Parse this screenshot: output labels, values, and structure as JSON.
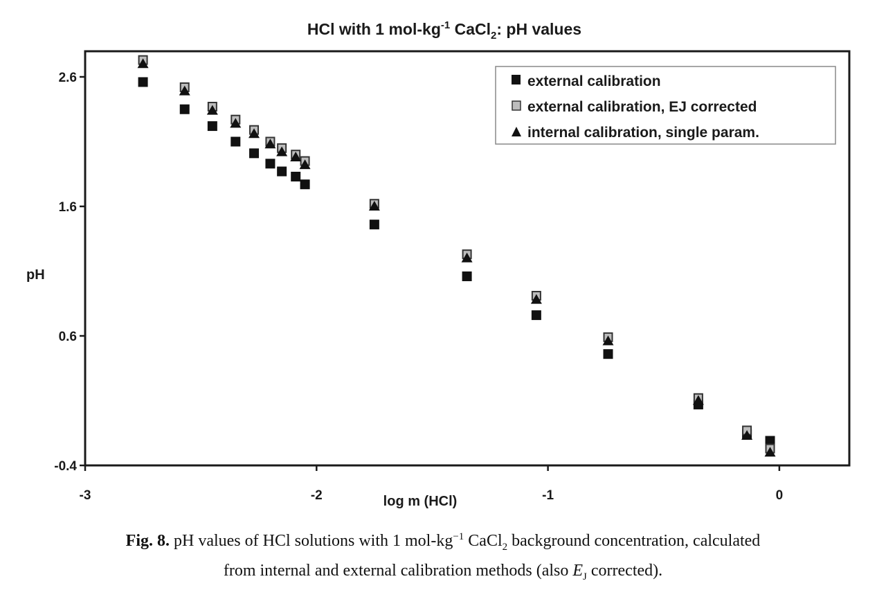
{
  "chart_data": {
    "type": "scatter",
    "title": {
      "main": "HCl with 1 mol-kg",
      "sup": "-1",
      "mid": " CaCl",
      "sub": "2",
      "end": ":  pH values"
    },
    "xlabel": "log m (HCl)",
    "ylabel": "pH",
    "xlim": [
      -3,
      0.3
    ],
    "ylim": [
      -0.4,
      2.8
    ],
    "xticks": [
      -3,
      -2,
      -1,
      0
    ],
    "xtick_labels": [
      "-3",
      "-2",
      "-1",
      "0"
    ],
    "yticks": [
      -0.4,
      0.6,
      1.6,
      2.6
    ],
    "ytick_labels": [
      "-0.4",
      "0.6",
      "1.6",
      "2.6"
    ],
    "grid": false,
    "legend_position": "top-right",
    "x": [
      -2.75,
      -2.57,
      -2.45,
      -2.35,
      -2.27,
      -2.2,
      -2.15,
      -2.09,
      -2.05,
      -1.75,
      -1.35,
      -1.05,
      -0.74,
      -0.35,
      -0.14,
      -0.04
    ],
    "series": [
      {
        "name": "external calibration",
        "marker": "square-filled",
        "color": "#111111",
        "values": [
          2.56,
          2.35,
          2.22,
          2.1,
          2.01,
          1.93,
          1.87,
          1.83,
          1.77,
          1.46,
          1.06,
          0.76,
          0.46,
          0.07,
          -0.16,
          -0.21
        ]
      },
      {
        "name": "external calibration, EJ corrected",
        "marker": "square-gray",
        "color": "#b8b8b8",
        "values": [
          2.73,
          2.52,
          2.37,
          2.27,
          2.19,
          2.1,
          2.05,
          2.0,
          1.95,
          1.62,
          1.23,
          0.91,
          0.59,
          0.12,
          -0.13,
          -0.27
        ]
      },
      {
        "name": "internal calibration, single param.",
        "marker": "triangle-filled",
        "color": "#111111",
        "values": [
          2.7,
          2.49,
          2.34,
          2.24,
          2.16,
          2.08,
          2.02,
          1.98,
          1.92,
          1.6,
          1.2,
          0.88,
          0.56,
          0.1,
          -0.17,
          -0.3
        ]
      }
    ]
  },
  "caption": {
    "fig_label": "Fig. 8.",
    "line1_a": " pH values of HCl solutions with 1 mol-kg",
    "line1_sup": "−1",
    "line1_b": " CaCl",
    "line1_sub": "2",
    "line1_c": " background concentration, calculated",
    "line2_a": "from internal and external calibration methods (also ",
    "line2_E": "E",
    "line2_sub": "J",
    "line2_b": " corrected)."
  }
}
